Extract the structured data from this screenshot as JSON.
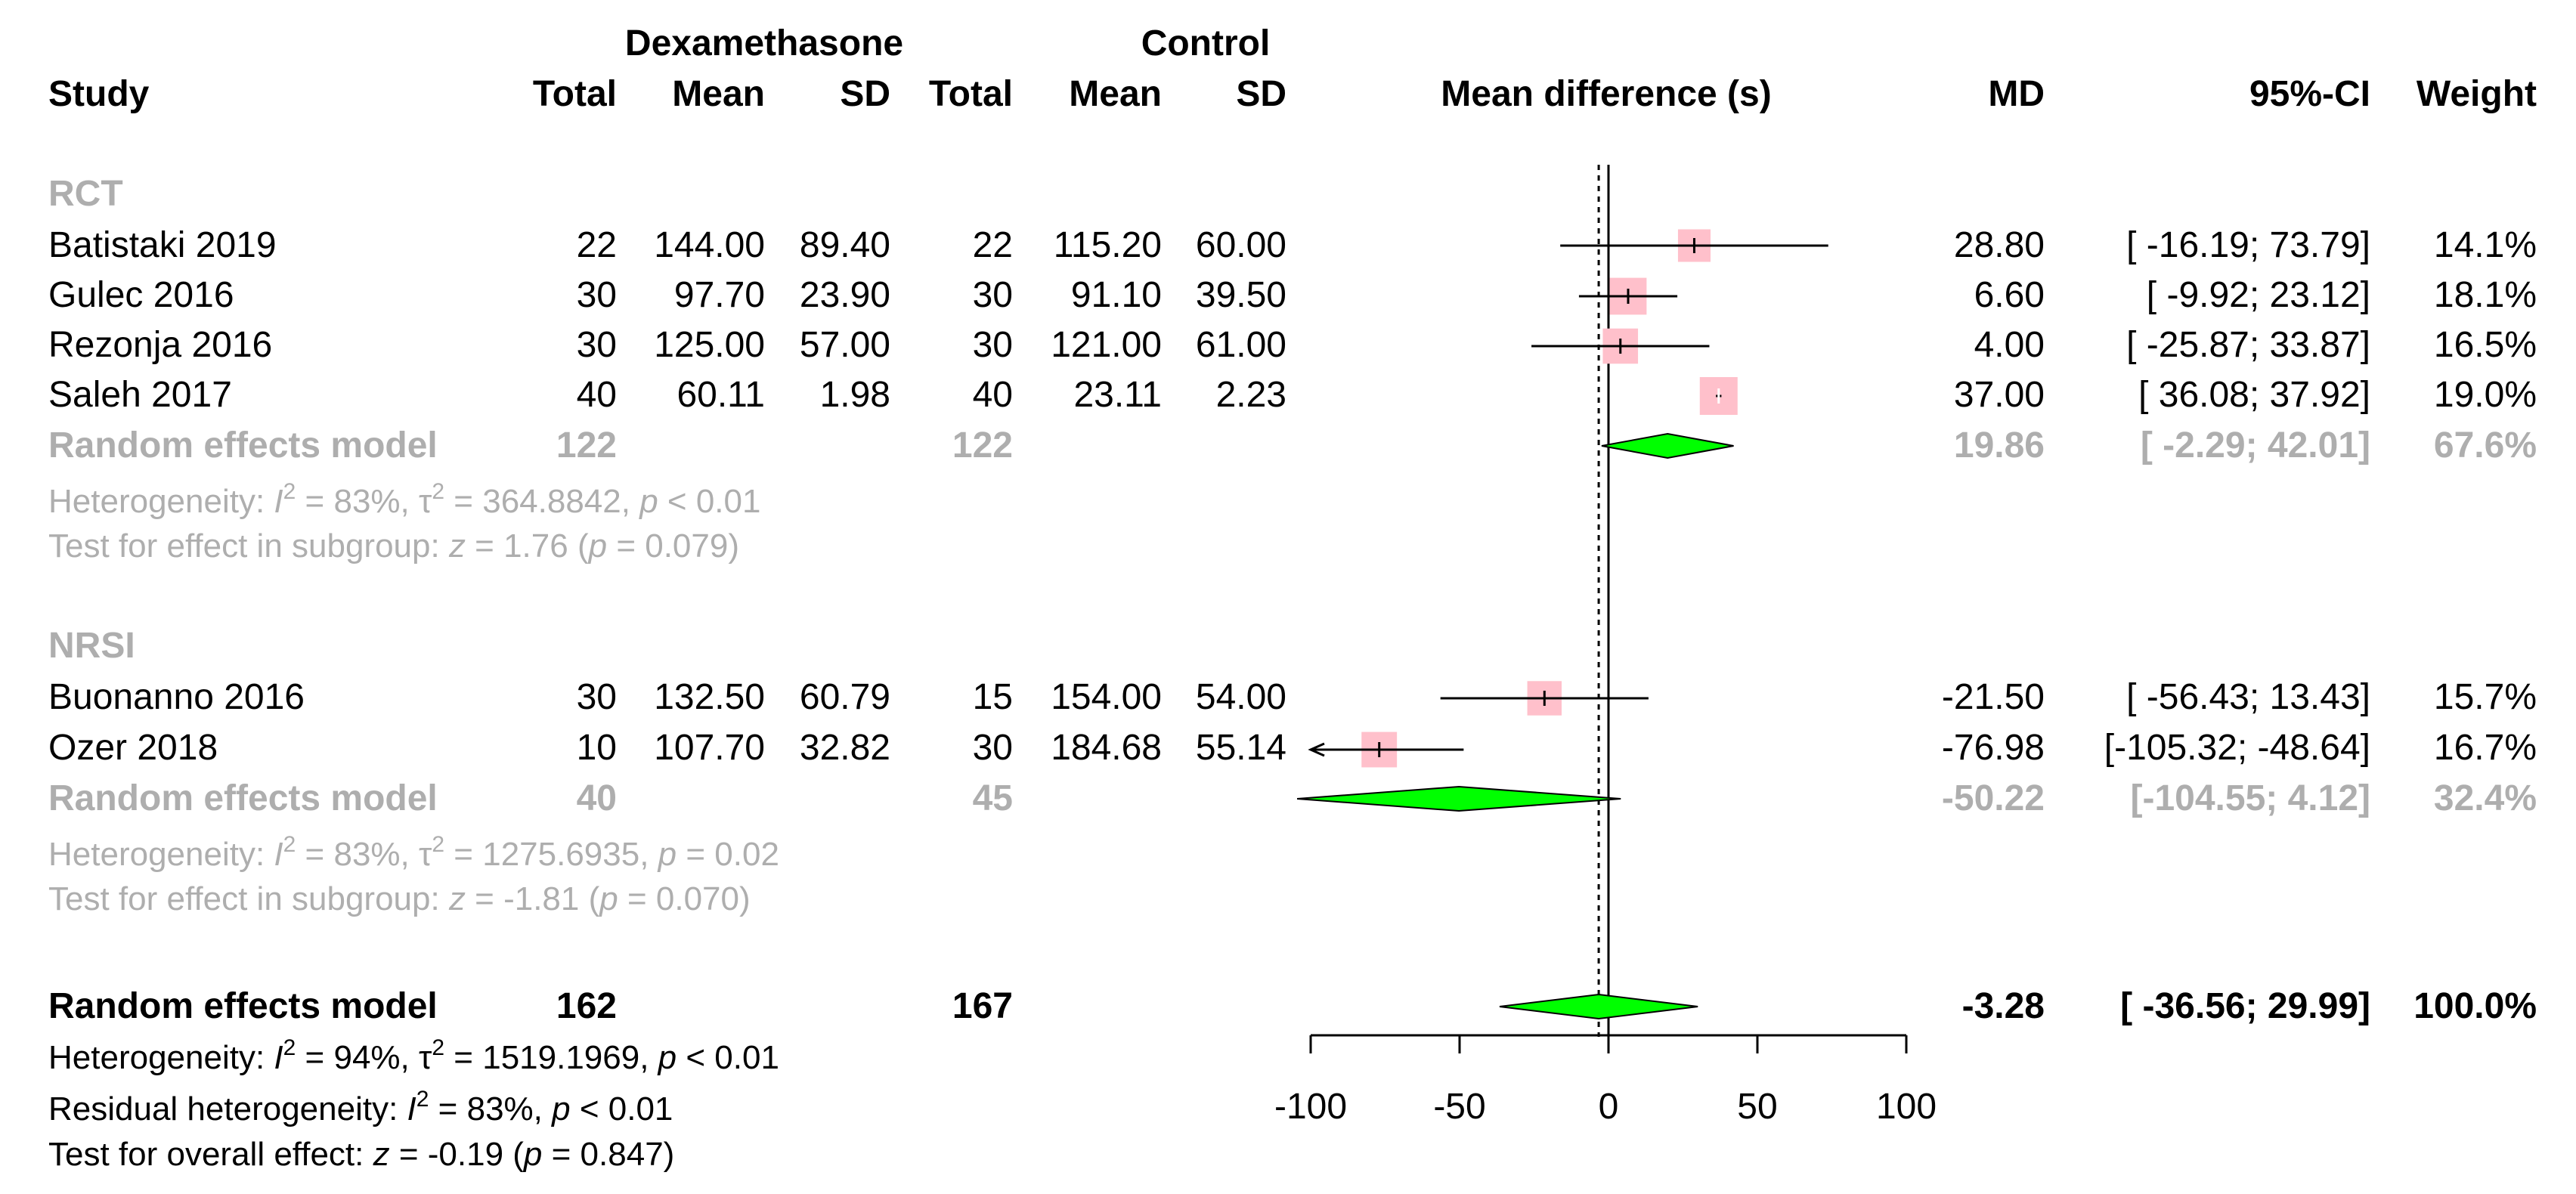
{
  "chart_data": {
    "type": "forest",
    "title": "",
    "xlabel": "Mean difference (s)",
    "xlim": [
      -100,
      100
    ],
    "x_ticks": [
      -100,
      -50,
      0,
      50,
      100
    ],
    "colors": {
      "box": "#ffc0cb",
      "diamond": "#00ff00",
      "grey_text": "#aeaeae",
      "line": "#000000"
    },
    "header": {
      "group1": "Dexamethasone",
      "group2": "Control",
      "study": "Study",
      "total": "Total",
      "mean": "Mean",
      "sd": "SD",
      "md": "MD",
      "ci": "95%-CI",
      "weight": "Weight"
    },
    "subgroups": [
      {
        "label": "RCT",
        "studies": [
          {
            "name": "Batistaki 2019",
            "e_total": "22",
            "e_mean": "144.00",
            "e_sd": "89.40",
            "c_total": "22",
            "c_mean": "115.20",
            "c_sd": "60.00",
            "md": 28.8,
            "lower": -16.19,
            "upper": 73.79,
            "md_text": "28.80",
            "ci_text": "[ -16.19; 73.79]",
            "weight_text": "14.1%",
            "weight": 14.1
          },
          {
            "name": "Gulec 2016",
            "e_total": "30",
            "e_mean": "97.70",
            "e_sd": "23.90",
            "c_total": "30",
            "c_mean": "91.10",
            "c_sd": "39.50",
            "md": 6.6,
            "lower": -9.92,
            "upper": 23.12,
            "md_text": "6.60",
            "ci_text": "[ -9.92; 23.12]",
            "weight_text": "18.1%",
            "weight": 18.1
          },
          {
            "name": "Rezonja 2016",
            "e_total": "30",
            "e_mean": "125.00",
            "e_sd": "57.00",
            "c_total": "30",
            "c_mean": "121.00",
            "c_sd": "61.00",
            "md": 4.0,
            "lower": -25.87,
            "upper": 33.87,
            "md_text": "4.00",
            "ci_text": "[ -25.87; 33.87]",
            "weight_text": "16.5%",
            "weight": 16.5
          },
          {
            "name": "Saleh 2017",
            "e_total": "40",
            "e_mean": "60.11",
            "e_sd": "1.98",
            "c_total": "40",
            "c_mean": "23.11",
            "c_sd": "2.23",
            "md": 37.0,
            "lower": 36.08,
            "upper": 37.92,
            "md_text": "37.00",
            "ci_text": "[ 36.08; 37.92]",
            "weight_text": "19.0%",
            "weight": 19.0
          }
        ],
        "model": {
          "label": "Random effects model",
          "e_total": "122",
          "c_total": "122",
          "md": 19.86,
          "lower": -2.29,
          "upper": 42.01,
          "md_text": "19.86",
          "ci_text": "[ -2.29; 42.01]",
          "weight_text": "67.6%"
        },
        "heterogeneity": {
          "prefix": "Heterogeneity: ",
          "i": "I",
          "sup": "2",
          "rest1": " = 83%, ",
          "tau": "τ",
          "rest2": " = 364.8842, ",
          "p": "p",
          "rest3": " < 0.01"
        },
        "test": {
          "prefix": "Test for effect in subgroup: ",
          "z": "z",
          "rest1": " = 1.76 (",
          "p": "p",
          "rest2": " = 0.079)"
        }
      },
      {
        "label": "NRSI",
        "studies": [
          {
            "name": "Buonanno 2016",
            "e_total": "30",
            "e_mean": "132.50",
            "e_sd": "60.79",
            "c_total": "15",
            "c_mean": "154.00",
            "c_sd": "54.00",
            "md": -21.5,
            "lower": -56.43,
            "upper": 13.43,
            "md_text": "-21.50",
            "ci_text": "[ -56.43; 13.43]",
            "weight_text": "15.7%",
            "weight": 15.7
          },
          {
            "name": "Ozer 2018",
            "e_total": "10",
            "e_mean": "107.70",
            "e_sd": "32.82",
            "c_total": "30",
            "c_mean": "184.68",
            "c_sd": "55.14",
            "md": -76.98,
            "lower": -105.32,
            "upper": -48.64,
            "md_text": "-76.98",
            "ci_text": "[-105.32; -48.64]",
            "weight_text": "16.7%",
            "weight": 16.7
          }
        ],
        "model": {
          "label": "Random effects model",
          "e_total": "40",
          "c_total": "45",
          "md": -50.22,
          "lower": -104.55,
          "upper": 4.12,
          "md_text": "-50.22",
          "ci_text": "[-104.55; 4.12]",
          "weight_text": "32.4%"
        },
        "heterogeneity": {
          "prefix": "Heterogeneity: ",
          "i": "I",
          "sup": "2",
          "rest1": " = 83%, ",
          "tau": "τ",
          "rest2": " = 1275.6935, ",
          "p": "p",
          "rest3": " = 0.02"
        },
        "test": {
          "prefix": "Test for effect in subgroup: ",
          "z": "z",
          "rest1": " = -1.81 (",
          "p": "p",
          "rest2": " = 0.070)"
        }
      }
    ],
    "overall": {
      "label": "Random effects model",
      "e_total": "162",
      "c_total": "167",
      "md": -3.28,
      "lower": -36.56,
      "upper": 29.99,
      "md_text": "-3.28",
      "ci_text": "[ -36.56; 29.99]",
      "weight_text": "100.0%",
      "heterogeneity": {
        "prefix": "Heterogeneity: ",
        "i": "I",
        "sup": "2",
        "rest1": " = 94%, ",
        "tau": "τ",
        "rest2": " = 1519.1969, ",
        "p": "p",
        "rest3": " < 0.01"
      },
      "residual": {
        "prefix": "Residual heterogeneity: ",
        "i": "I",
        "sup": "2",
        "rest1": " = 83%, ",
        "p": "p",
        "rest3": " < 0.01"
      },
      "test": {
        "prefix": "Test for overall effect: ",
        "z": "z",
        "rest1": " = -0.19 (",
        "p": "p",
        "rest2": " = 0.847)"
      }
    }
  }
}
